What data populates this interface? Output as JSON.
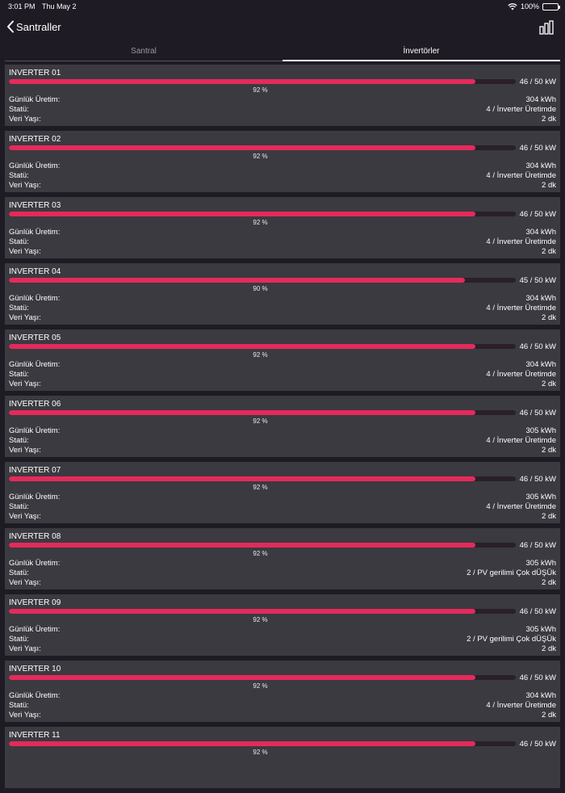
{
  "status_bar": {
    "time": "3:01 PM",
    "date": "Thu May 2",
    "battery": "100%",
    "wifi_icon": "wifi-icon"
  },
  "nav": {
    "back_label": "Santraller",
    "chart_icon": "bar-chart-icon"
  },
  "tabs": [
    {
      "label": "Santral",
      "active": false
    },
    {
      "label": "İnvertörler",
      "active": true
    }
  ],
  "labels": {
    "daily": "Günlük Üretim:",
    "status": "Statü:",
    "age": "Veri Yaşı:"
  },
  "inverters": [
    {
      "name": "INVERTER 01",
      "percent": 92,
      "percent_label": "92 %",
      "power": "46 / 50 kW",
      "daily": "304 kWh",
      "status": "4 / İnverter Üretimde",
      "age": "2 dk"
    },
    {
      "name": "INVERTER 02",
      "percent": 92,
      "percent_label": "92 %",
      "power": "46 / 50 kW",
      "daily": "304 kWh",
      "status": "4 / İnverter Üretimde",
      "age": "2 dk"
    },
    {
      "name": "INVERTER 03",
      "percent": 92,
      "percent_label": "92 %",
      "power": "46 / 50 kW",
      "daily": "304 kWh",
      "status": "4 / İnverter Üretimde",
      "age": "2 dk"
    },
    {
      "name": "INVERTER 04",
      "percent": 90,
      "percent_label": "90 %",
      "power": "45 / 50 kW",
      "daily": "304 kWh",
      "status": "4 / İnverter Üretimde",
      "age": "2 dk"
    },
    {
      "name": "INVERTER 05",
      "percent": 92,
      "percent_label": "92 %",
      "power": "46 / 50 kW",
      "daily": "304 kWh",
      "status": "4 / İnverter Üretimde",
      "age": "2 dk"
    },
    {
      "name": "INVERTER 06",
      "percent": 92,
      "percent_label": "92 %",
      "power": "46 / 50 kW",
      "daily": "305 kWh",
      "status": "4 / İnverter Üretimde",
      "age": "2 dk"
    },
    {
      "name": "INVERTER 07",
      "percent": 92,
      "percent_label": "92 %",
      "power": "46 / 50 kW",
      "daily": "305 kWh",
      "status": "4 / İnverter Üretimde",
      "age": "2 dk"
    },
    {
      "name": "INVERTER 08",
      "percent": 92,
      "percent_label": "92 %",
      "power": "46 / 50 kW",
      "daily": "305 kWh",
      "status": "2 / PV gerilimi Çok dÜŞÜk",
      "age": "2 dk"
    },
    {
      "name": "INVERTER 09",
      "percent": 92,
      "percent_label": "92 %",
      "power": "46 / 50 kW",
      "daily": "305 kWh",
      "status": "2 / PV gerilimi Çok dÜŞÜk",
      "age": "2 dk"
    },
    {
      "name": "INVERTER 10",
      "percent": 92,
      "percent_label": "92 %",
      "power": "46 / 50 kW",
      "daily": "304 kWh",
      "status": "4 / İnverter Üretimde",
      "age": "2 dk"
    },
    {
      "name": "INVERTER 11",
      "percent": 92,
      "percent_label": "92 %",
      "power": "46 / 50 kW",
      "daily": "",
      "status": "",
      "age": ""
    }
  ],
  "colors": {
    "accent": "#e52a5b",
    "card": "#3a3a40",
    "background": "#1e1b24"
  }
}
